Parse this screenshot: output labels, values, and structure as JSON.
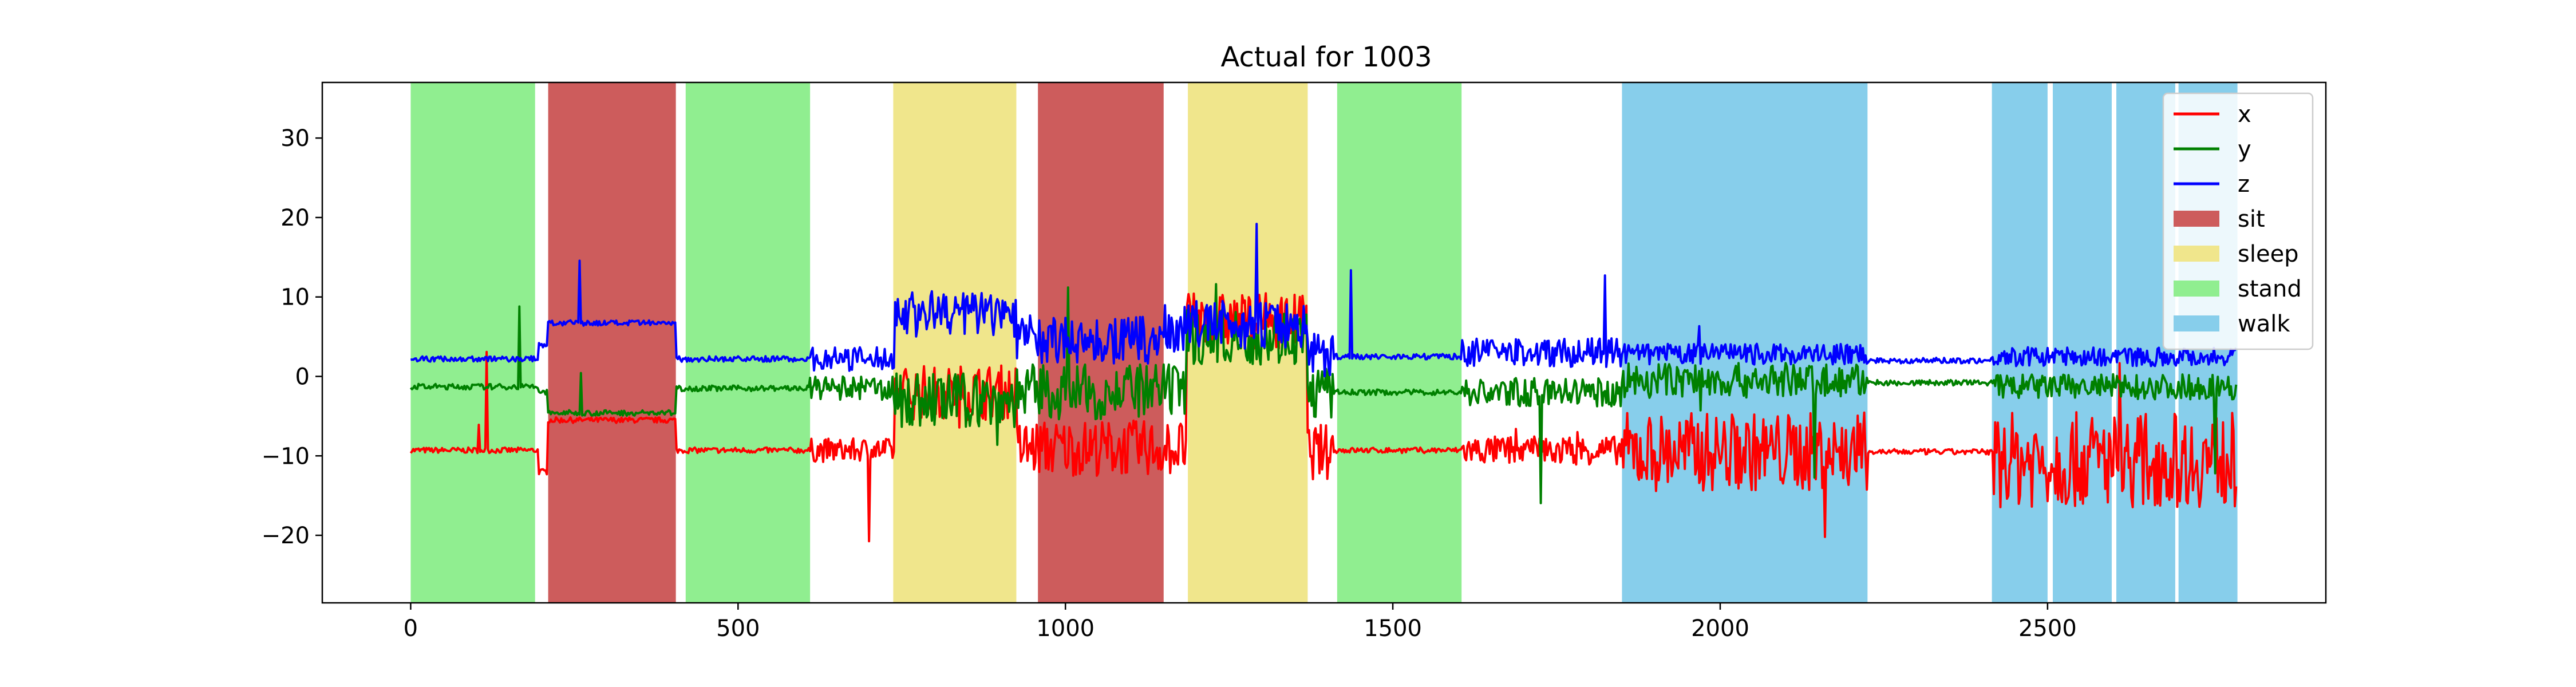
{
  "chart_data": {
    "type": "line",
    "title": "Actual for 1003",
    "xlabel": "",
    "ylabel": "",
    "xlim": [
      -135,
      2925
    ],
    "ylim": [
      -28.5,
      37
    ],
    "xticks": [
      0,
      500,
      1000,
      1500,
      2000,
      2500
    ],
    "yticks": [
      -20,
      -10,
      0,
      10,
      20,
      30
    ],
    "xtick_labels": [
      "0",
      "500",
      "1000",
      "1500",
      "2000",
      "2500"
    ],
    "ytick_labels": [
      "−20",
      "−10",
      "0",
      "10",
      "20",
      "30"
    ],
    "grid": false,
    "legend_position": "top-right",
    "n_points": 2790,
    "series": [
      {
        "name": "x",
        "color": "#ff0000",
        "baseline_by_segment": [
          [
            0,
            195,
            -9.3
          ],
          [
            195,
            210,
            -12
          ],
          [
            210,
            405,
            -5.5
          ],
          [
            405,
            610,
            -9.3
          ],
          [
            610,
            740,
            -9.3
          ],
          [
            740,
            925,
            -2
          ],
          [
            925,
            960,
            -9
          ],
          [
            960,
            1150,
            -9
          ],
          [
            1150,
            1185,
            -9
          ],
          [
            1185,
            1370,
            7
          ],
          [
            1370,
            1410,
            -9.5
          ],
          [
            1410,
            1605,
            -9.3
          ],
          [
            1605,
            1850,
            -9.3
          ],
          [
            1850,
            2225,
            -9.5
          ],
          [
            2225,
            2415,
            -9.5
          ],
          [
            2415,
            2790,
            -10.5
          ]
        ]
      },
      {
        "name": "y",
        "color": "#008000",
        "baseline_by_segment": [
          [
            0,
            195,
            -1.3
          ],
          [
            195,
            210,
            -2
          ],
          [
            210,
            405,
            -4.6
          ],
          [
            405,
            610,
            -1.5
          ],
          [
            610,
            740,
            -1.5
          ],
          [
            740,
            925,
            -3
          ],
          [
            925,
            960,
            -2
          ],
          [
            960,
            1150,
            -2
          ],
          [
            1150,
            1185,
            -2
          ],
          [
            1185,
            1370,
            5
          ],
          [
            1370,
            1410,
            -2
          ],
          [
            1410,
            1605,
            -2
          ],
          [
            1605,
            1850,
            -2
          ],
          [
            1850,
            2225,
            -0.5
          ],
          [
            2225,
            2415,
            -0.8
          ],
          [
            2415,
            2790,
            -1.3
          ]
        ]
      },
      {
        "name": "z",
        "color": "#0000ff",
        "baseline_by_segment": [
          [
            0,
            195,
            2.2
          ],
          [
            195,
            210,
            4
          ],
          [
            210,
            405,
            6.7
          ],
          [
            405,
            610,
            2.2
          ],
          [
            610,
            740,
            2.2
          ],
          [
            740,
            925,
            8
          ],
          [
            925,
            960,
            5
          ],
          [
            960,
            1150,
            4.5
          ],
          [
            1150,
            1185,
            6
          ],
          [
            1185,
            1370,
            6.5
          ],
          [
            1370,
            1410,
            3
          ],
          [
            1410,
            1605,
            2.5
          ],
          [
            1605,
            1850,
            3
          ],
          [
            1850,
            2225,
            2.8
          ],
          [
            2225,
            2415,
            2
          ],
          [
            2415,
            2790,
            2.5
          ]
        ]
      }
    ],
    "activity_spans": [
      {
        "label": "stand",
        "start": 0,
        "end": 190
      },
      {
        "label": "sit",
        "start": 210,
        "end": 405
      },
      {
        "label": "stand",
        "start": 420,
        "end": 610
      },
      {
        "label": "sleep",
        "start": 737,
        "end": 925
      },
      {
        "label": "sit",
        "start": 958,
        "end": 1150
      },
      {
        "label": "sleep",
        "start": 1187,
        "end": 1370
      },
      {
        "label": "stand",
        "start": 1415,
        "end": 1605
      },
      {
        "label": "walk",
        "start": 1850,
        "end": 2225
      },
      {
        "label": "walk",
        "start": 2415,
        "end": 2500
      },
      {
        "label": "walk",
        "start": 2508,
        "end": 2598
      },
      {
        "label": "walk",
        "start": 2605,
        "end": 2695
      },
      {
        "label": "walk",
        "start": 2700,
        "end": 2790
      }
    ],
    "activity_colors": {
      "sit": "#cd5c5c",
      "sleep": "#f0e68c",
      "stand": "#90ee90",
      "walk": "#87ceeb"
    },
    "legend": [
      {
        "label": "x",
        "kind": "line",
        "color": "#ff0000"
      },
      {
        "label": "y",
        "kind": "line",
        "color": "#008000"
      },
      {
        "label": "z",
        "kind": "line",
        "color": "#0000ff"
      },
      {
        "label": "sit",
        "kind": "patch",
        "color": "#cd5c5c"
      },
      {
        "label": "sleep",
        "kind": "patch",
        "color": "#f0e68c"
      },
      {
        "label": "stand",
        "kind": "patch",
        "color": "#90ee90"
      },
      {
        "label": "walk",
        "kind": "patch",
        "color": "#87ceeb"
      }
    ]
  }
}
